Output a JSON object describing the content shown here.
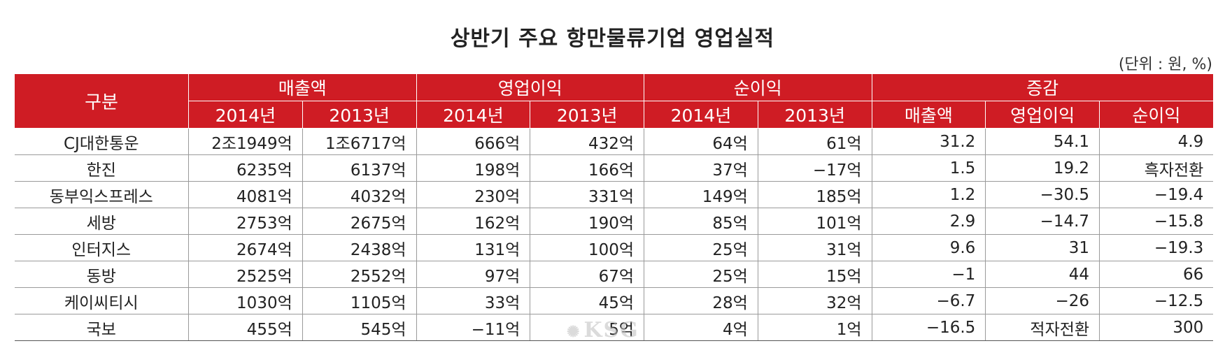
{
  "title": "상반기 주요 항만물류기업 영업실적",
  "unit": "(단위 : 원, %)",
  "header": {
    "category": "구분",
    "groups": [
      "매출액",
      "영업이익",
      "순이익",
      "증감"
    ],
    "subheaders": [
      "2014년",
      "2013년",
      "2014년",
      "2013년",
      "2014년",
      "2013년",
      "매출액",
      "영업이익",
      "순이익"
    ]
  },
  "rows": [
    {
      "name": "CJ대한통운",
      "cells": [
        "2조1949억",
        "1조6717억",
        "666억",
        "432억",
        "64억",
        "61억",
        "31.2",
        "54.1",
        "4.9"
      ]
    },
    {
      "name": "한진",
      "cells": [
        "6235억",
        "6137억",
        "198억",
        "166억",
        "37억",
        "−17억",
        "1.5",
        "19.2",
        "흑자전환"
      ]
    },
    {
      "name": "동부익스프레스",
      "cells": [
        "4081억",
        "4032억",
        "230억",
        "331억",
        "149억",
        "185억",
        "1.2",
        "−30.5",
        "−19.4"
      ]
    },
    {
      "name": "세방",
      "cells": [
        "2753억",
        "2675억",
        "162억",
        "190억",
        "85억",
        "101억",
        "2.9",
        "−14.7",
        "−15.8"
      ]
    },
    {
      "name": "인터지스",
      "cells": [
        "2674억",
        "2438억",
        "131억",
        "100억",
        "25억",
        "31억",
        "9.6",
        "31",
        "−19.3"
      ]
    },
    {
      "name": "동방",
      "cells": [
        "2525억",
        "2552억",
        "97억",
        "67억",
        "25억",
        "15억",
        "−1",
        "44",
        "66"
      ]
    },
    {
      "name": "케이씨티시",
      "cells": [
        "1030억",
        "1105억",
        "33억",
        "45억",
        "28억",
        "32억",
        "−6.7",
        "−26",
        "−12.5"
      ]
    },
    {
      "name": "국보",
      "cells": [
        "455억",
        "545억",
        "−11억",
        "5억",
        "4억",
        "1억",
        "−16.5",
        "적자전환",
        "300"
      ]
    }
  ],
  "watermark": "KSG",
  "colors": {
    "header_bg": "#cf1c24",
    "header_text": "#ffffff"
  }
}
